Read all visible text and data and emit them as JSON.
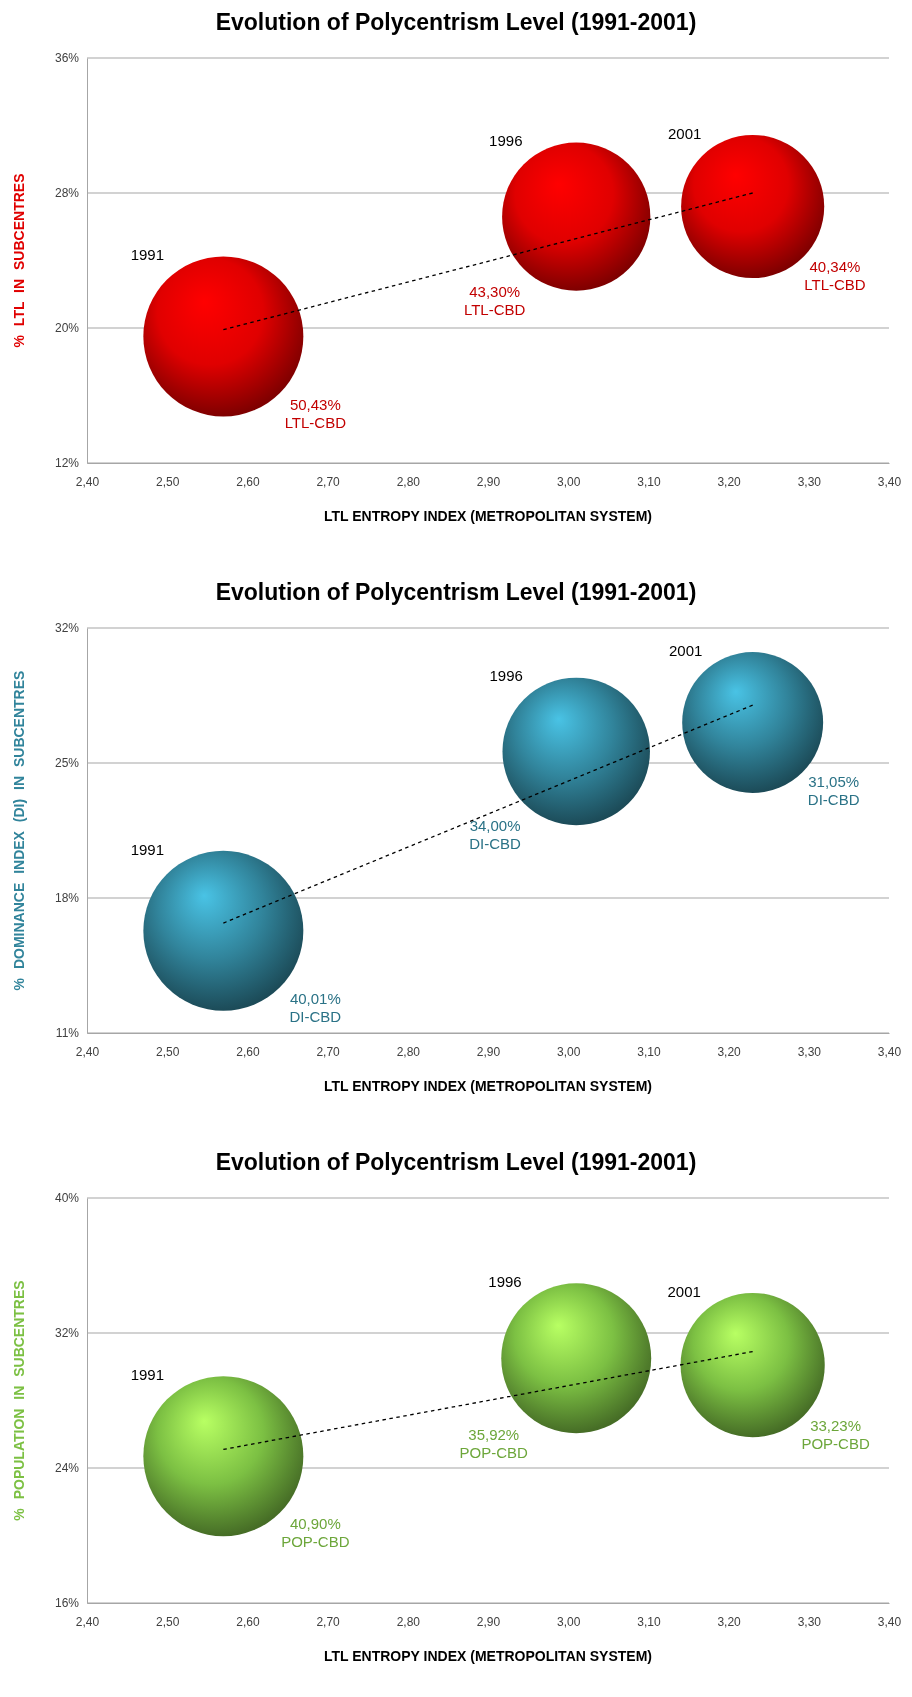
{
  "chart_data": [
    {
      "type": "bubble",
      "title": "Evolution of Polycentrism Level (1991-2001)",
      "xlabel": "LTL ENTROPY INDEX (METROPOLITAN SYSTEM)",
      "ylabel": "% LTL IN SUBCENTRES",
      "xlim": [
        2.4,
        3.4
      ],
      "xticks": [
        {
          "value": 2.4,
          "label": "2,40"
        },
        {
          "value": 2.5,
          "label": "2,50"
        },
        {
          "value": 2.6,
          "label": "2,60"
        },
        {
          "value": 2.7,
          "label": "2,70"
        },
        {
          "value": 2.8,
          "label": "2,80"
        },
        {
          "value": 2.9,
          "label": "2,90"
        },
        {
          "value": 3.0,
          "label": "3,00"
        },
        {
          "value": 3.1,
          "label": "3,10"
        },
        {
          "value": 3.2,
          "label": "3,20"
        },
        {
          "value": 3.3,
          "label": "3,30"
        },
        {
          "value": 3.4,
          "label": "3,40"
        }
      ],
      "ylim": [
        12,
        36
      ],
      "yticks": [
        {
          "value": 12,
          "label": "12%"
        },
        {
          "value": 20,
          "label": "20%"
        },
        {
          "value": 28,
          "label": "28%"
        },
        {
          "value": 36,
          "label": "36%"
        }
      ],
      "grid": "y",
      "series": [
        {
          "name": "1991",
          "color": "#e00000",
          "x": [
            2.57
          ],
          "values": [
            19.5
          ],
          "sizes": [
            50.43
          ],
          "value_labels": [
            "50,43%\nLTL-CBD"
          ]
        },
        {
          "name": "1996",
          "color": "#e00000",
          "x": [
            3.01
          ],
          "values": [
            26.6
          ],
          "sizes": [
            43.3
          ],
          "value_labels": [
            "43,30%\nLTL-CBD"
          ]
        },
        {
          "name": "2001",
          "color": "#e00000",
          "x": [
            3.23
          ],
          "values": [
            27.2
          ],
          "sizes": [
            40.34
          ],
          "value_labels": [
            "40,34%\nLTL-CBD"
          ]
        },
        {
          "type": "line",
          "color": "#000000",
          "line_style": "dashed",
          "x": [
            2.57,
            3.23
          ],
          "values": [
            19.9,
            28.0
          ]
        }
      ]
    },
    {
      "type": "bubble",
      "title": "Evolution of Polycentrism Level (1991-2001)",
      "xlabel": "LTL ENTROPY INDEX (METROPOLITAN SYSTEM)",
      "ylabel": "% DOMINANCE INDEX (DI) IN SUBCENTRES",
      "xlim": [
        2.4,
        3.4
      ],
      "xticks": [
        {
          "value": 2.4,
          "label": "2,40"
        },
        {
          "value": 2.5,
          "label": "2,50"
        },
        {
          "value": 2.6,
          "label": "2,60"
        },
        {
          "value": 2.7,
          "label": "2,70"
        },
        {
          "value": 2.8,
          "label": "2,80"
        },
        {
          "value": 2.9,
          "label": "2,90"
        },
        {
          "value": 3.0,
          "label": "3,00"
        },
        {
          "value": 3.1,
          "label": "3,10"
        },
        {
          "value": 3.2,
          "label": "3,20"
        },
        {
          "value": 3.3,
          "label": "3,30"
        },
        {
          "value": 3.4,
          "label": "3,40"
        }
      ],
      "ylim": [
        11,
        32
      ],
      "yticks": [
        {
          "value": 11,
          "label": "11%"
        },
        {
          "value": 18,
          "label": "18%"
        },
        {
          "value": 25,
          "label": "25%"
        },
        {
          "value": 32,
          "label": "32%"
        }
      ],
      "grid": "y",
      "series": [
        {
          "name": "1991",
          "color": "#31849b",
          "x": [
            2.57
          ],
          "values": [
            16.3
          ],
          "sizes": [
            40.01
          ],
          "value_labels": [
            "40,01%\nDI-CBD"
          ]
        },
        {
          "name": "1996",
          "color": "#31849b",
          "x": [
            3.01
          ],
          "values": [
            25.6
          ],
          "sizes": [
            34.0
          ],
          "value_labels": [
            "34,00%\nDI-CBD"
          ]
        },
        {
          "name": "2001",
          "color": "#31849b",
          "x": [
            3.23
          ],
          "values": [
            27.1
          ],
          "sizes": [
            31.05
          ],
          "value_labels": [
            "31,05%\nDI-CBD"
          ]
        },
        {
          "type": "line",
          "color": "#000000",
          "line_style": "dashed",
          "x": [
            2.57,
            3.23
          ],
          "values": [
            16.7,
            28.0
          ]
        }
      ]
    },
    {
      "type": "bubble",
      "title": "Evolution of Polycentrism Level (1991-2001)",
      "xlabel": "LTL ENTROPY INDEX (METROPOLITAN SYSTEM)",
      "ylabel": "% POPULATION IN SUBCENTRES",
      "xlim": [
        2.4,
        3.4
      ],
      "xticks": [
        {
          "value": 2.4,
          "label": "2,40"
        },
        {
          "value": 2.5,
          "label": "2,50"
        },
        {
          "value": 2.6,
          "label": "2,60"
        },
        {
          "value": 2.7,
          "label": "2,70"
        },
        {
          "value": 2.8,
          "label": "2,80"
        },
        {
          "value": 2.9,
          "label": "2,90"
        },
        {
          "value": 3.0,
          "label": "3,00"
        },
        {
          "value": 3.1,
          "label": "3,10"
        },
        {
          "value": 3.2,
          "label": "3,20"
        },
        {
          "value": 3.3,
          "label": "3,30"
        },
        {
          "value": 3.4,
          "label": "3,40"
        }
      ],
      "ylim": [
        16,
        40
      ],
      "yticks": [
        {
          "value": 16,
          "label": "16%"
        },
        {
          "value": 24,
          "label": "24%"
        },
        {
          "value": 32,
          "label": "32%"
        },
        {
          "value": 40,
          "label": "40%"
        }
      ],
      "grid": "y",
      "series": [
        {
          "name": "1991",
          "color": "#7cc043",
          "x": [
            2.57
          ],
          "values": [
            24.7
          ],
          "sizes": [
            40.9
          ],
          "value_labels": [
            "40,90%\nPOP-CBD"
          ]
        },
        {
          "name": "1996",
          "color": "#7cc043",
          "x": [
            3.01
          ],
          "values": [
            30.5
          ],
          "sizes": [
            35.92
          ],
          "value_labels": [
            "35,92%\nPOP-CBD"
          ]
        },
        {
          "name": "2001",
          "color": "#7cc043",
          "x": [
            3.23
          ],
          "values": [
            30.1
          ],
          "sizes": [
            33.23
          ],
          "value_labels": [
            "33,23%\nPOP-CBD"
          ]
        },
        {
          "type": "line",
          "color": "#000000",
          "line_style": "dashed",
          "x": [
            2.57,
            3.23
          ],
          "values": [
            25.1,
            30.9
          ]
        }
      ]
    }
  ]
}
